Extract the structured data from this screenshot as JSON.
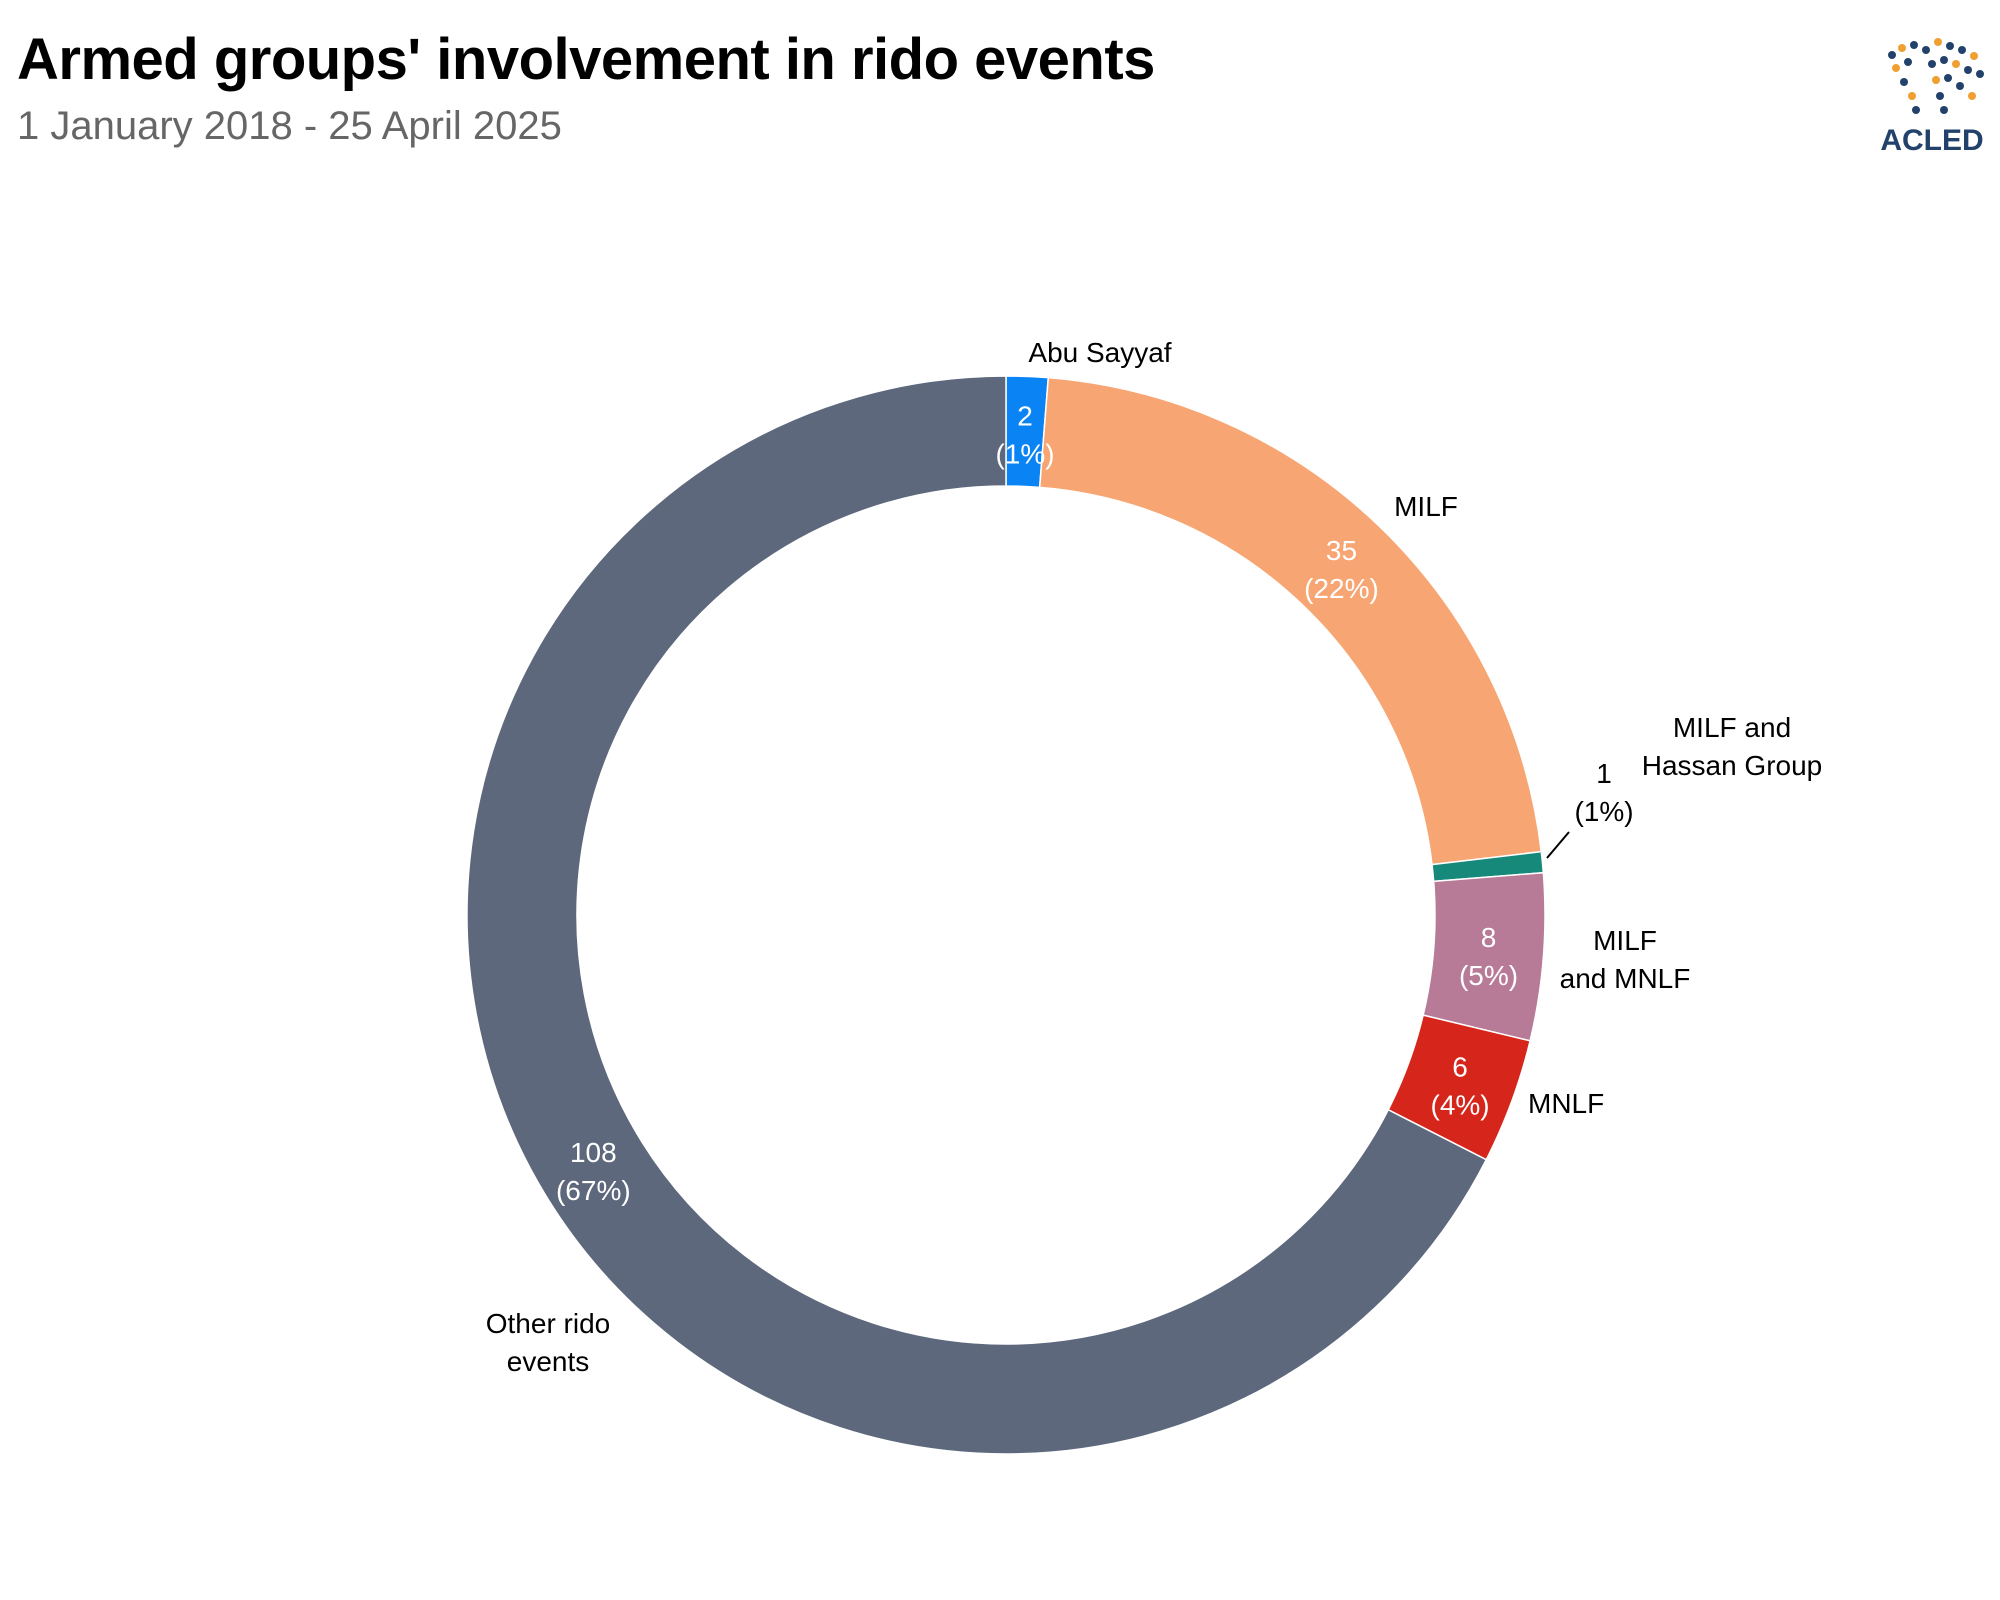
{
  "header": {
    "title": "Armed groups' involvement in rido events",
    "subtitle": "1 January 2018 - 25 April 2025"
  },
  "logo": {
    "text": "ACLED",
    "color": "#22416b",
    "accent": "#f0a030",
    "icon": "acled-world-map-icon"
  },
  "chart_data": {
    "type": "pie",
    "donut": true,
    "title": "Armed groups' involvement in rido events",
    "subtitle": "1 January 2018 - 25 April 2025",
    "categories": [
      "Abu Sayyaf",
      "MILF",
      "MILF and Hassan Group",
      "MILF and MNLF",
      "MNLF",
      "Other rido events"
    ],
    "values": [
      2,
      35,
      1,
      8,
      6,
      108
    ],
    "percent_labels": [
      "(1%)",
      "(22%)",
      "(1%)",
      "(5%)",
      "(4%)",
      "(67%)"
    ],
    "colors": [
      "#0a84f4",
      "#f7a673",
      "#17897a",
      "#b77a97",
      "#d6251b",
      "#5d687c"
    ],
    "start_angle_deg": 0,
    "direction": "clockwise"
  }
}
